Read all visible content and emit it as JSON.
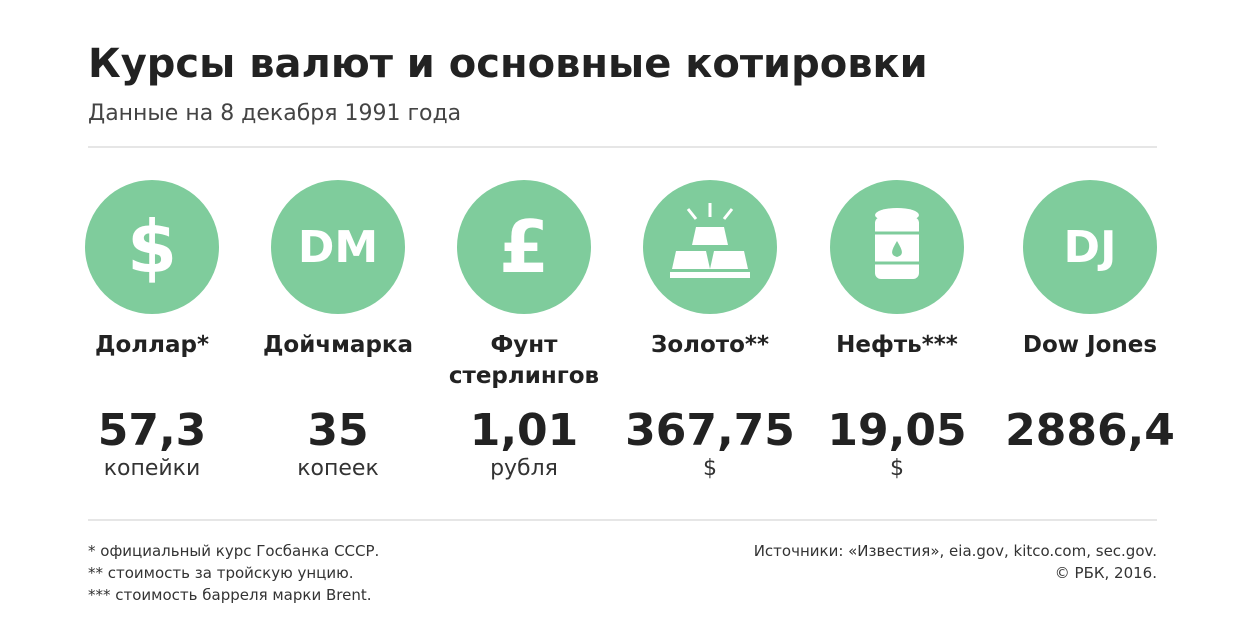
{
  "header": {
    "title": "Курсы валют и основные котировки",
    "subtitle": "Данные на 8 декабря 1991 года"
  },
  "items": [
    {
      "icon": "$",
      "label": "Доллар*",
      "value": "57,3",
      "unit": "копейки"
    },
    {
      "icon": "DM",
      "label": "Дойчмарка",
      "value": "35",
      "unit": "копеек"
    },
    {
      "icon": "£",
      "label": "Фунт стерлингов",
      "value": "1,01",
      "unit": "рубля"
    },
    {
      "label": "Золото**",
      "value": "367,75",
      "unit": "$"
    },
    {
      "label": "Нефть***",
      "value": "19,05",
      "unit": "$"
    },
    {
      "icon": "DJ",
      "label": "Dow Jones",
      "value": "2886,4"
    }
  ],
  "footnotes": [
    "* официальный курс Госбанка СССР.",
    "** стоимость за тройскую унцию.",
    "*** стоимость барреля марки Brent."
  ],
  "sources": [
    "Источники: «Известия», eia.gov, kitco.com, sec.gov.",
    "© РБК, 2016."
  ]
}
